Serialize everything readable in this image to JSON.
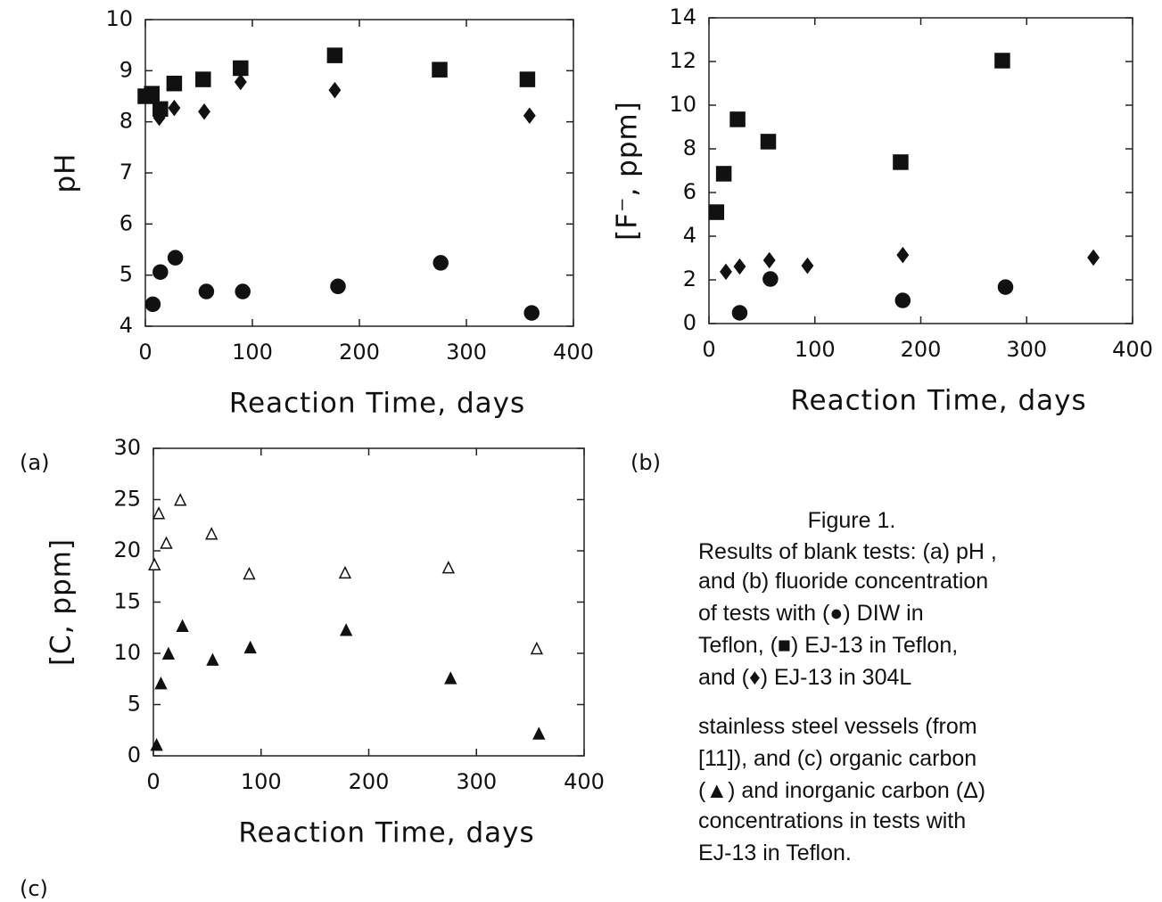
{
  "chart_data": [
    {
      "type": "scatter",
      "panel_label": "(a)",
      "xlabel": "Reaction Time,  days",
      "ylabel": "pH",
      "xlim": [
        0,
        400
      ],
      "xticks": [
        0,
        100,
        200,
        300,
        400
      ],
      "ylim": [
        4,
        10
      ],
      "yticks": [
        4,
        5,
        6,
        7,
        8,
        9,
        10
      ],
      "series": [
        {
          "marker": "square",
          "filled": true,
          "color": "#111111",
          "x": [
            0,
            6,
            14,
            27,
            54,
            89,
            177,
            275,
            357
          ],
          "values": [
            8.5,
            8.55,
            8.25,
            8.75,
            8.83,
            9.05,
            9.3,
            9.02,
            8.83
          ]
        },
        {
          "marker": "diamond",
          "filled": true,
          "color": "#111111",
          "x": [
            13,
            27,
            55,
            89,
            177,
            359
          ],
          "values": [
            8.08,
            8.27,
            8.2,
            8.78,
            8.62,
            8.12
          ]
        },
        {
          "marker": "circle",
          "filled": true,
          "color": "#111111",
          "x": [
            7,
            14,
            28,
            57,
            91,
            180,
            276,
            361
          ],
          "values": [
            4.43,
            5.06,
            5.34,
            4.68,
            4.68,
            4.78,
            5.24,
            4.26
          ]
        }
      ]
    },
    {
      "type": "scatter",
      "panel_label": "(b)",
      "xlabel": "Reaction Time,  days",
      "ylabel": "[F⁻, ppm]",
      "xlim": [
        0,
        400
      ],
      "xticks": [
        0,
        100,
        200,
        300,
        400
      ],
      "ylim": [
        0,
        14
      ],
      "yticks": [
        0,
        2,
        4,
        6,
        8,
        10,
        12,
        14
      ],
      "series": [
        {
          "marker": "square",
          "filled": true,
          "color": "#111111",
          "x": [
            7,
            14,
            27,
            56,
            181,
            277
          ],
          "values": [
            5.1,
            6.86,
            9.35,
            8.33,
            7.39,
            12.04
          ]
        },
        {
          "marker": "diamond",
          "filled": true,
          "color": "#111111",
          "x": [
            16,
            29,
            57,
            93,
            183,
            363
          ],
          "values": [
            2.37,
            2.61,
            2.9,
            2.65,
            3.14,
            3.02
          ]
        },
        {
          "marker": "circle",
          "filled": true,
          "color": "#111111",
          "x": [
            29,
            58,
            183,
            280
          ],
          "values": [
            0.49,
            2.04,
            1.06,
            1.67
          ]
        }
      ]
    },
    {
      "type": "scatter",
      "panel_label": "(c)",
      "xlabel": "Reaction Time,  days",
      "ylabel": "[C, ppm]",
      "xlim": [
        0,
        400
      ],
      "xticks": [
        0,
        100,
        200,
        300,
        400
      ],
      "ylim": [
        0,
        30
      ],
      "yticks": [
        0,
        5,
        10,
        15,
        20,
        25,
        30
      ],
      "series": [
        {
          "marker": "triangle",
          "filled": false,
          "color": "#111111",
          "x": [
            1,
            5,
            12,
            25,
            54,
            89,
            178,
            274,
            356
          ],
          "values": [
            18.6,
            23.6,
            20.7,
            24.9,
            21.6,
            17.7,
            17.8,
            18.3,
            10.4
          ]
        },
        {
          "marker": "triangle",
          "filled": true,
          "color": "#111111",
          "x": [
            3,
            7,
            14,
            27,
            55,
            90,
            179,
            276,
            358
          ],
          "values": [
            1.0,
            7.0,
            9.9,
            12.6,
            9.3,
            10.5,
            12.2,
            7.5,
            2.1
          ]
        }
      ]
    }
  ],
  "caption": {
    "title": "Figure 1.",
    "lines": [
      "Results of blank tests: (a) pH ,",
      "and (b) fluoride concentration",
      "of tests with (●) DIW in",
      "Teflon, (■) EJ-13 in Teflon,",
      "and (♦) EJ-13 in 304L",
      "stainless steel vessels (from",
      "[11]), and (c) organic carbon",
      "(▲) and inorganic carbon (Δ)",
      "concentrations in tests with",
      "EJ-13 in Teflon."
    ]
  }
}
